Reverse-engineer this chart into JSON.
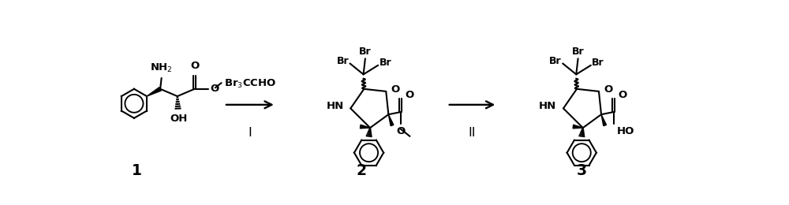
{
  "background": "#ffffff",
  "line_color": "#000000",
  "text_color": "#000000",
  "label1": "1",
  "label2": "2",
  "label3": "3",
  "reagent1_text": "Br₃CCHO",
  "step1_label": "I",
  "step2_label": "II",
  "fig_width": 10.0,
  "fig_height": 2.6,
  "dpi": 100,
  "base_fontsize": 9.5,
  "line_width": 1.5
}
